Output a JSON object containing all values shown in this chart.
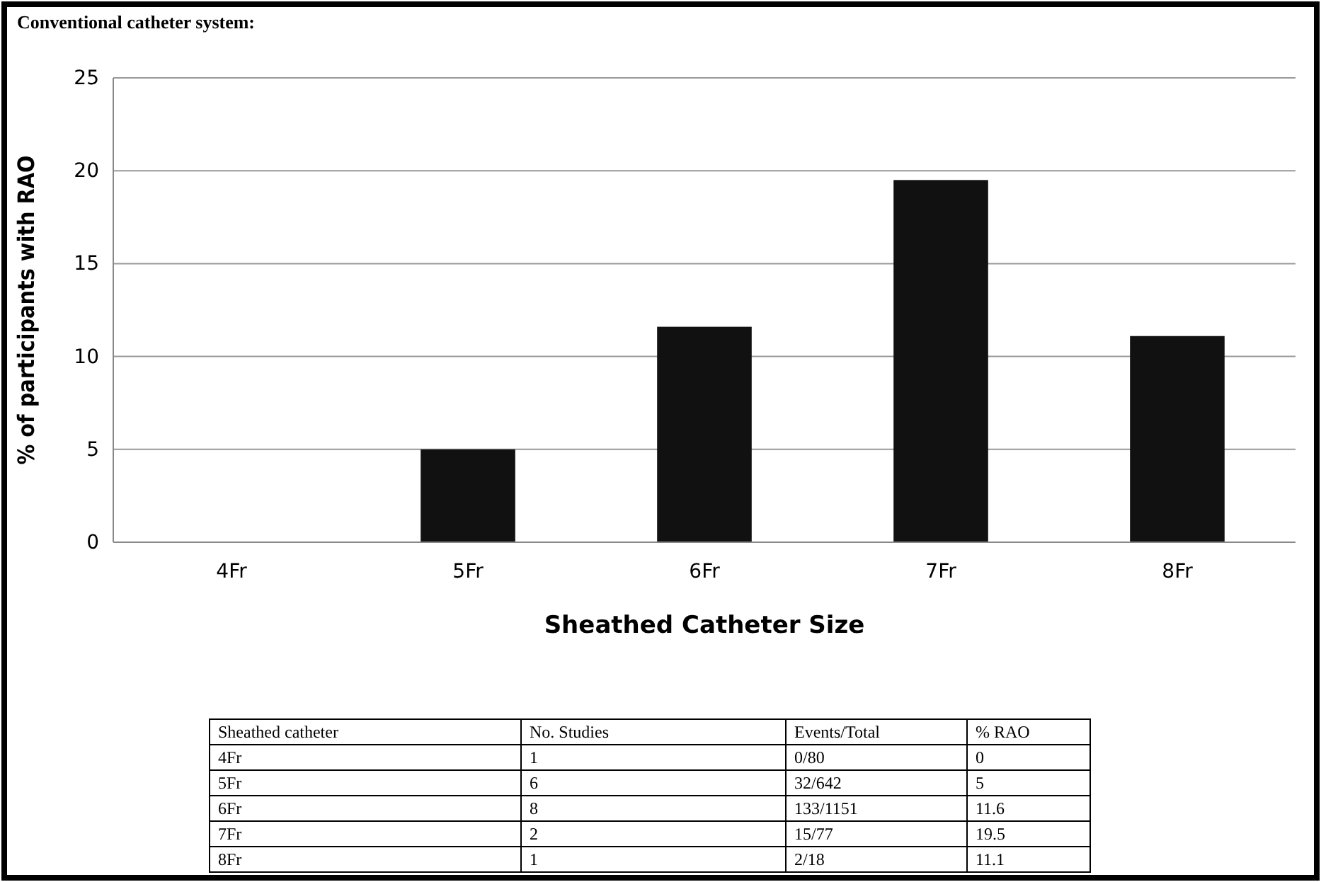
{
  "chart_data": {
    "type": "bar",
    "title": "Conventional catheter system:",
    "xlabel": "Sheathed Catheter Size",
    "ylabel": "% of participants with RAO",
    "categories": [
      "4Fr",
      "5Fr",
      "6Fr",
      "7Fr",
      "8Fr"
    ],
    "values": [
      0,
      5,
      11.6,
      19.5,
      11.1
    ],
    "color": "#111111",
    "ylim": [
      0,
      25
    ],
    "yticks": [
      0,
      5,
      10,
      15,
      20,
      25
    ],
    "grid": "y",
    "annotations": [
      "Sheathed catheter",
      "No. Studies",
      "Events/Total",
      "% RAO",
      "1",
      "0/80",
      "0",
      "6",
      "32/642",
      "5",
      "8",
      "133/1151",
      "11.6",
      "2",
      "15/77",
      "19.5",
      "1",
      "2/18",
      "11.1"
    ]
  }
}
